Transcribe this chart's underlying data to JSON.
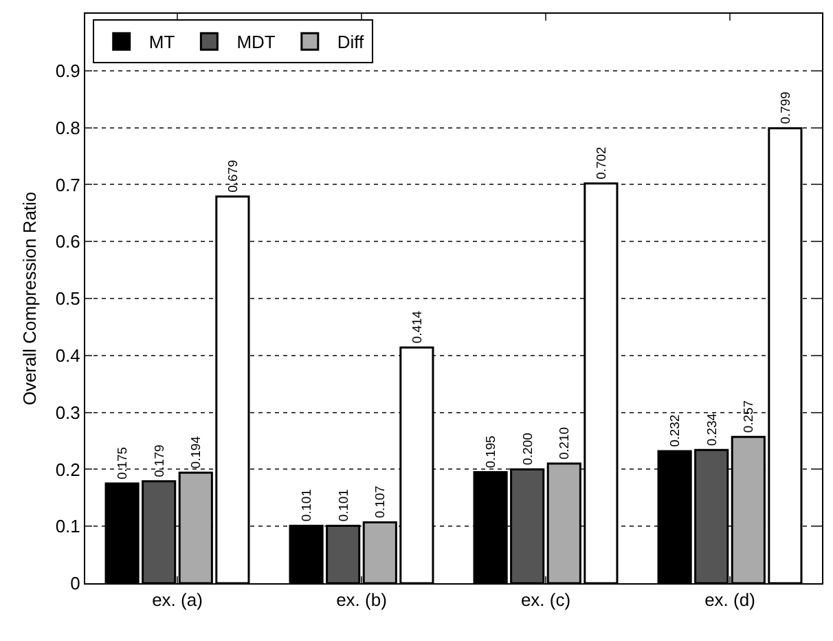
{
  "chart_data": {
    "type": "bar",
    "ylabel": "Overall Compression Ratio",
    "categories": [
      "ex. (a)",
      "ex. (b)",
      "ex. (c)",
      "ex. (d)"
    ],
    "series": [
      {
        "name": "MT",
        "color": "#000000",
        "values": [
          0.175,
          0.101,
          0.195,
          0.232
        ],
        "value_labels": [
          "0.175",
          "0.101",
          "0.195",
          "0.232"
        ]
      },
      {
        "name": "MDT",
        "color": "#555555",
        "values": [
          0.179,
          0.101,
          0.2,
          0.234
        ],
        "value_labels": [
          "0.179",
          "0.101",
          "0.200",
          "0.234"
        ]
      },
      {
        "name": "Diff",
        "color": "#aaaaaa",
        "values": [
          0.194,
          0.107,
          0.21,
          0.257
        ],
        "value_labels": [
          "0.194",
          "0.107",
          "0.210",
          "0.257"
        ]
      },
      {
        "color": "#ffffff",
        "values": [
          0.679,
          0.414,
          0.702,
          0.799
        ],
        "value_labels": [
          "0.679",
          "0.414",
          "0.702",
          "0.799"
        ]
      }
    ],
    "ylim": [
      0,
      1
    ],
    "yticks": [
      0,
      0.1,
      0.2,
      0.3,
      0.4,
      0.5,
      0.6,
      0.7,
      0.8,
      0.9
    ],
    "grid": "y",
    "legend": "top left"
  }
}
